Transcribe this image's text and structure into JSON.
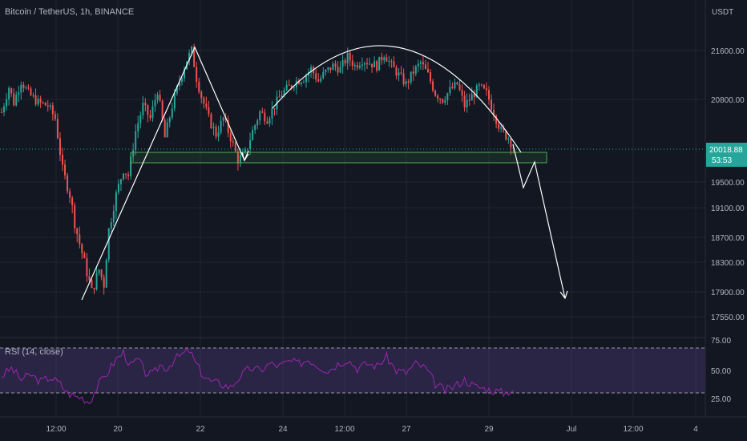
{
  "header": {
    "title": "Bitcoin / TetherUS, 1h, BINANCE"
  },
  "rsi": {
    "label": "RSI (14, close)"
  },
  "colors": {
    "up": "#26a69a",
    "down": "#ef5350",
    "rsi": "#9c27b0",
    "zone": "#4caf50",
    "grid": "#1f2430",
    "text": "#b2b5be",
    "drawing": "#ffffff"
  },
  "chart_data": [
    {
      "type": "candlestick",
      "title": "Bitcoin / TetherUS, 1h, BINANCE",
      "y_unit": "USDT",
      "y_ticks": [
        21600,
        20800,
        19500,
        19100,
        18700,
        18300,
        17900,
        17550
      ],
      "x_ticks": [
        "12:00",
        "20",
        "22",
        "24",
        "12:00",
        "27",
        "29",
        "Jul",
        "12:00",
        "4"
      ],
      "current_price": "20018.88",
      "countdown": "53:53",
      "grid": true,
      "series_outline": [
        [
          0,
          20600
        ],
        [
          3,
          21000
        ],
        [
          5,
          20750
        ],
        [
          8,
          21100
        ],
        [
          11,
          20900
        ],
        [
          15,
          20750
        ],
        [
          19,
          20700
        ],
        [
          22,
          20500
        ],
        [
          25,
          19700
        ],
        [
          28,
          19300
        ],
        [
          30,
          18900
        ],
        [
          34,
          18300
        ],
        [
          37,
          17900
        ],
        [
          40,
          18200
        ],
        [
          42,
          18000
        ],
        [
          44,
          18800
        ],
        [
          47,
          19300
        ],
        [
          50,
          19700
        ],
        [
          52,
          19600
        ],
        [
          55,
          20300
        ],
        [
          58,
          20700
        ],
        [
          61,
          20500
        ],
        [
          64,
          20950
        ],
        [
          67,
          20200
        ],
        [
          70,
          20700
        ],
        [
          73,
          21100
        ],
        [
          76,
          21450
        ],
        [
          78,
          21600
        ],
        [
          80,
          21150
        ],
        [
          82,
          20850
        ],
        [
          85,
          20500
        ],
        [
          88,
          20250
        ],
        [
          91,
          20500
        ],
        [
          94,
          20200
        ],
        [
          97,
          19850
        ],
        [
          100,
          19950
        ],
        [
          103,
          20300
        ],
        [
          106,
          20600
        ],
        [
          109,
          20500
        ],
        [
          112,
          20700
        ],
        [
          115,
          20900
        ],
        [
          118,
          21000
        ],
        [
          121,
          21100
        ],
        [
          124,
          21150
        ],
        [
          127,
          21300
        ],
        [
          130,
          21100
        ],
        [
          133,
          21250
        ],
        [
          136,
          21350
        ],
        [
          139,
          21300
        ],
        [
          142,
          21500
        ],
        [
          145,
          21350
        ],
        [
          148,
          21450
        ],
        [
          151,
          21400
        ],
        [
          154,
          21350
        ],
        [
          157,
          21550
        ],
        [
          160,
          21350
        ],
        [
          163,
          21200
        ],
        [
          166,
          21050
        ],
        [
          169,
          21250
        ],
        [
          172,
          21400
        ],
        [
          175,
          21200
        ],
        [
          178,
          20900
        ],
        [
          181,
          20800
        ],
        [
          184,
          20950
        ],
        [
          187,
          21050
        ],
        [
          190,
          20700
        ],
        [
          193,
          20850
        ],
        [
          196,
          21000
        ],
        [
          199,
          20900
        ],
        [
          202,
          20600
        ],
        [
          205,
          20300
        ],
        [
          208,
          20200
        ],
        [
          210,
          20050
        ]
      ],
      "annotations": [
        "support-zone",
        "head-and-shoulders-path",
        "arc-top",
        "projection-arrow"
      ]
    },
    {
      "type": "line",
      "title": "RSI (14, close)",
      "y_ticks": [
        75.0,
        50.0,
        25.0
      ],
      "bands": [
        70,
        30
      ],
      "series_outline": [
        [
          0,
          45
        ],
        [
          4,
          52
        ],
        [
          8,
          42
        ],
        [
          12,
          46
        ],
        [
          16,
          40
        ],
        [
          20,
          44
        ],
        [
          24,
          38
        ],
        [
          27,
          30
        ],
        [
          30,
          27
        ],
        [
          33,
          26
        ],
        [
          36,
          22
        ],
        [
          40,
          38
        ],
        [
          44,
          50
        ],
        [
          47,
          60
        ],
        [
          50,
          66
        ],
        [
          53,
          54
        ],
        [
          56,
          60
        ],
        [
          59,
          48
        ],
        [
          62,
          46
        ],
        [
          65,
          55
        ],
        [
          68,
          52
        ],
        [
          71,
          60
        ],
        [
          74,
          64
        ],
        [
          77,
          68
        ],
        [
          80,
          55
        ],
        [
          83,
          45
        ],
        [
          86,
          40
        ],
        [
          90,
          38
        ],
        [
          94,
          35
        ],
        [
          98,
          45
        ],
        [
          102,
          52
        ],
        [
          106,
          50
        ],
        [
          110,
          56
        ],
        [
          114,
          54
        ],
        [
          118,
          58
        ],
        [
          122,
          56
        ],
        [
          126,
          60
        ],
        [
          130,
          54
        ],
        [
          134,
          50
        ],
        [
          138,
          56
        ],
        [
          142,
          60
        ],
        [
          146,
          52
        ],
        [
          150,
          56
        ],
        [
          154,
          54
        ],
        [
          158,
          62
        ],
        [
          162,
          50
        ],
        [
          166,
          48
        ],
        [
          170,
          56
        ],
        [
          174,
          52
        ],
        [
          178,
          38
        ],
        [
          182,
          32
        ],
        [
          186,
          36
        ],
        [
          190,
          42
        ],
        [
          194,
          36
        ],
        [
          198,
          34
        ],
        [
          202,
          32
        ],
        [
          206,
          30
        ],
        [
          210,
          33
        ]
      ]
    }
  ]
}
